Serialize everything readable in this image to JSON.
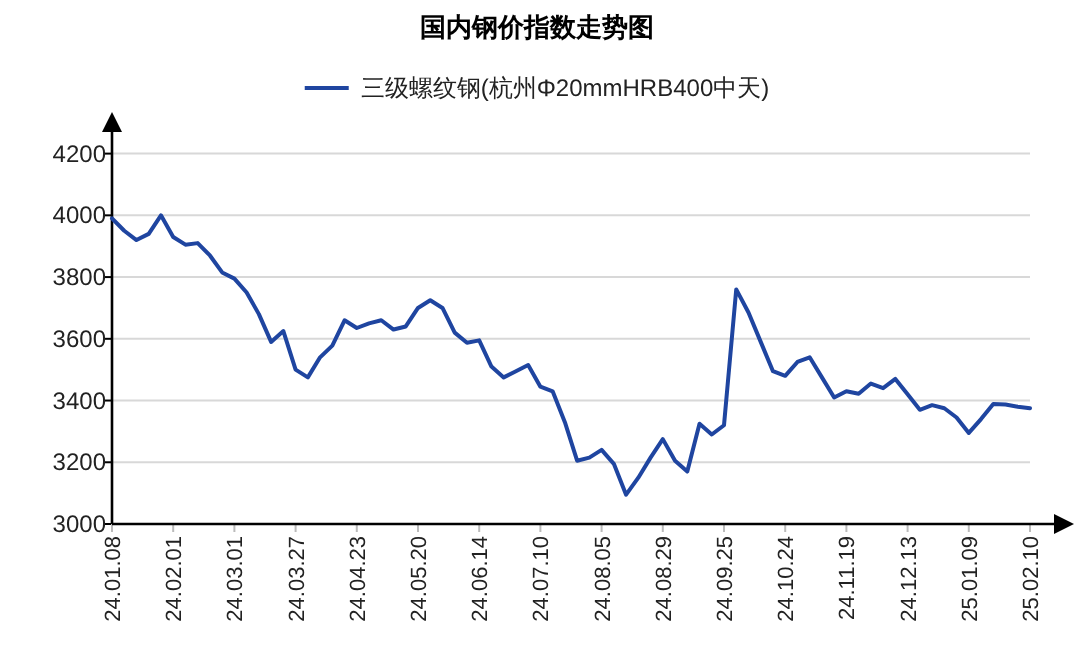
{
  "chart_data": {
    "type": "line",
    "title": "国内钢价指数走势图",
    "categories": [
      "24.01.08",
      null,
      null,
      null,
      null,
      "24.02.01",
      null,
      null,
      null,
      null,
      "24.03.01",
      null,
      null,
      null,
      null,
      "24.03.27",
      null,
      null,
      null,
      null,
      "24.04.23",
      null,
      null,
      null,
      null,
      "24.05.20",
      null,
      null,
      null,
      null,
      "24.06.14",
      null,
      null,
      null,
      null,
      "24.07.10",
      null,
      null,
      null,
      null,
      "24.08.05",
      null,
      null,
      null,
      null,
      "24.08.29",
      null,
      null,
      null,
      null,
      "24.09.25",
      null,
      null,
      null,
      null,
      "24.10.24",
      null,
      null,
      null,
      null,
      "24.11.19",
      null,
      null,
      null,
      null,
      "24.12.13",
      null,
      null,
      null,
      null,
      "25.01.09",
      null,
      null,
      null,
      null,
      "25.02.10"
    ],
    "series": [
      {
        "name": "三级螺纹钢(杭州Φ20mmHRB400中天)",
        "color": "#1f45a0",
        "values": [
          3990,
          3950,
          3920,
          3940,
          4000,
          3930,
          3905,
          3910,
          3870,
          3815,
          3795,
          3750,
          3680,
          3590,
          3625,
          3500,
          3475,
          3540,
          3578,
          3660,
          3635,
          3650,
          3660,
          3630,
          3640,
          3700,
          3725,
          3700,
          3620,
          3587,
          3595,
          3510,
          3475,
          3495,
          3515,
          3445,
          3430,
          3330,
          3205,
          3215,
          3240,
          3195,
          3095,
          3150,
          3215,
          3275,
          3205,
          3170,
          3325,
          3290,
          3320,
          3760,
          3685,
          3590,
          3495,
          3480,
          3525,
          3540,
          3475,
          3410,
          3430,
          3422,
          3455,
          3440,
          3470,
          3420,
          3370,
          3385,
          3375,
          3345,
          3295,
          3340,
          3389,
          3387,
          3380,
          3375
        ]
      }
    ],
    "ylim": [
      3000,
      4270
    ],
    "yticks": [
      3000,
      3200,
      3400,
      3600,
      3800,
      4000,
      4200
    ],
    "grid": "y",
    "legend": "top",
    "marker": "none",
    "line_style": "solid"
  }
}
